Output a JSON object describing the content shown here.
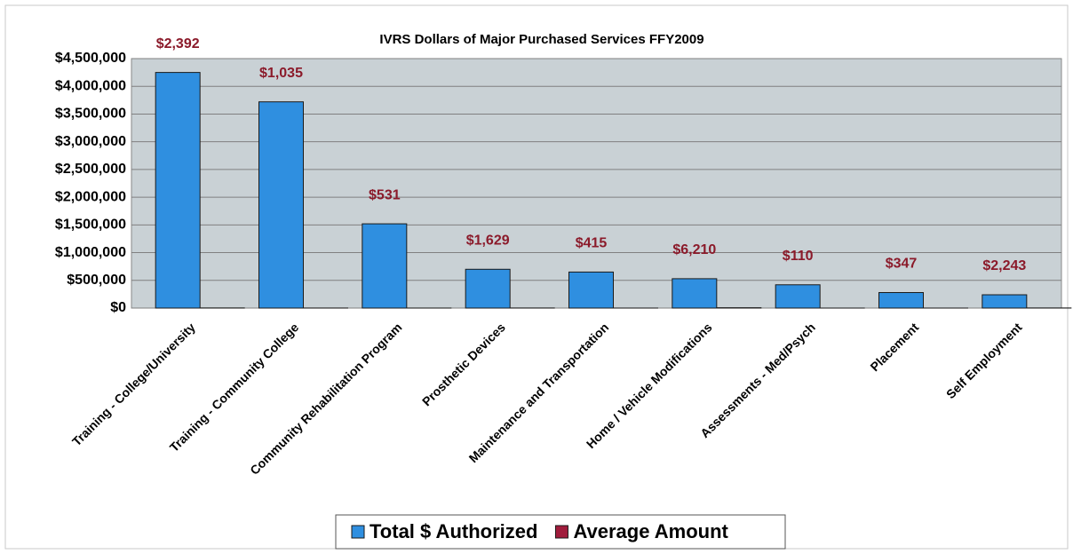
{
  "chart_data": {
    "type": "bar",
    "title": "IVRS Dollars of Major Purchased Services FFY2009",
    "categories": [
      "Training - College/University",
      "Training - Community College",
      "Community Rehabilitation Program",
      "Prosthetic Devices",
      "Maintenance and Transportation",
      "Home / Vehicle Modifications",
      "Assessments - Med/Psych",
      "Placement",
      "Self Employment"
    ],
    "series": [
      {
        "name": "Total $ Authorized",
        "color": "#2f8fe0",
        "values": [
          4250000,
          3720000,
          1520000,
          700000,
          650000,
          530000,
          420000,
          280000,
          240000
        ]
      },
      {
        "name": "Average Amount",
        "color": "#a01c3c",
        "values": [
          2392,
          1035,
          531,
          1629,
          415,
          6210,
          110,
          347,
          2243
        ],
        "value_labels": [
          "$2,392",
          "$1,035",
          "$531",
          "$1,629",
          "$415",
          "$6,210",
          "$110",
          "$347",
          "$2,243"
        ]
      }
    ],
    "ylim": [
      0,
      4500000
    ],
    "yticks": [
      {
        "value": 0,
        "label": "$0"
      },
      {
        "value": 500000,
        "label": "$500,000"
      },
      {
        "value": 1000000,
        "label": "$1,000,000"
      },
      {
        "value": 1500000,
        "label": "$1,500,000"
      },
      {
        "value": 2000000,
        "label": "$2,000,000"
      },
      {
        "value": 2500000,
        "label": "$2,500,000"
      },
      {
        "value": 3000000,
        "label": "$3,000,000"
      },
      {
        "value": 3500000,
        "label": "$3,500,000"
      },
      {
        "value": 4000000,
        "label": "$4,000,000"
      },
      {
        "value": 4500000,
        "label": "$4,500,000"
      }
    ],
    "grid": true,
    "legend": "bottom"
  }
}
